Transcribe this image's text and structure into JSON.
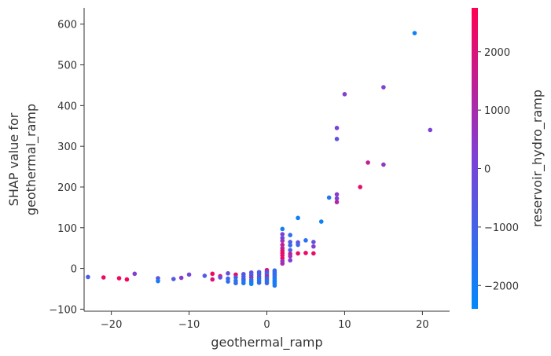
{
  "chart_data": {
    "type": "scatter",
    "xlabel": "geothermal_ramp",
    "ylabel_lines": [
      "SHAP value for",
      "geothermal_ramp"
    ],
    "colorbar_label": "reservoir_hydro_ramp",
    "xlim": [
      -23.5,
      23.5
    ],
    "ylim": [
      -105,
      640
    ],
    "xticks": [
      -20,
      -10,
      0,
      10,
      20
    ],
    "yticks": [
      -100,
      0,
      100,
      200,
      300,
      400,
      500,
      600
    ],
    "clim": [
      -2400,
      2750
    ],
    "cticks": [
      -2000,
      -1000,
      0,
      1000,
      2000
    ],
    "colormap": [
      "#008afb",
      "#7d41d6",
      "#ff0052"
    ],
    "points": [
      {
        "x": -23,
        "y": -21,
        "c": -900
      },
      {
        "x": -21,
        "y": -22,
        "c": 2400
      },
      {
        "x": -19,
        "y": -24,
        "c": 2500
      },
      {
        "x": -18,
        "y": -27,
        "c": 2600
      },
      {
        "x": -17,
        "y": -13,
        "c": 300
      },
      {
        "x": -14,
        "y": -24,
        "c": -500
      },
      {
        "x": -14,
        "y": -31,
        "c": -1900
      },
      {
        "x": -12,
        "y": -26,
        "c": -700
      },
      {
        "x": -11,
        "y": -23,
        "c": 400
      },
      {
        "x": -10,
        "y": -15,
        "c": 0
      },
      {
        "x": -8,
        "y": -18,
        "c": -800
      },
      {
        "x": -7,
        "y": -13,
        "c": 2500
      },
      {
        "x": -7,
        "y": -27,
        "c": 2100
      },
      {
        "x": -6,
        "y": -19,
        "c": 2400
      },
      {
        "x": -6,
        "y": -22,
        "c": -400
      },
      {
        "x": -5,
        "y": -12,
        "c": -200
      },
      {
        "x": -5,
        "y": -25,
        "c": -1100
      },
      {
        "x": -5,
        "y": -32,
        "c": -1500
      },
      {
        "x": -4,
        "y": -15,
        "c": 2300
      },
      {
        "x": -4,
        "y": -22,
        "c": -800
      },
      {
        "x": -4,
        "y": -30,
        "c": -1600
      },
      {
        "x": -4,
        "y": -36,
        "c": -1300
      },
      {
        "x": -3,
        "y": -14,
        "c": -300
      },
      {
        "x": -3,
        "y": -20,
        "c": -1000
      },
      {
        "x": -3,
        "y": -26,
        "c": -700
      },
      {
        "x": -3,
        "y": -31,
        "c": -1500
      },
      {
        "x": -3,
        "y": -36,
        "c": -1800
      },
      {
        "x": -2,
        "y": -10,
        "c": -400
      },
      {
        "x": -2,
        "y": -16,
        "c": -900
      },
      {
        "x": -2,
        "y": -22,
        "c": 500
      },
      {
        "x": -2,
        "y": -28,
        "c": -1200
      },
      {
        "x": -2,
        "y": -33,
        "c": -1600
      },
      {
        "x": -2,
        "y": -38,
        "c": -2000
      },
      {
        "x": -1,
        "y": -9,
        "c": -700
      },
      {
        "x": -1,
        "y": -14,
        "c": -1100
      },
      {
        "x": -1,
        "y": -20,
        "c": -300
      },
      {
        "x": -1,
        "y": -25,
        "c": -1500
      },
      {
        "x": -1,
        "y": -30,
        "c": -1800
      },
      {
        "x": -1,
        "y": -35,
        "c": -1300
      },
      {
        "x": 0,
        "y": -4,
        "c": 2200
      },
      {
        "x": 0,
        "y": -8,
        "c": 300
      },
      {
        "x": 0,
        "y": -12,
        "c": -900
      },
      {
        "x": 0,
        "y": -16,
        "c": -1400
      },
      {
        "x": 0,
        "y": -20,
        "c": 1800
      },
      {
        "x": 0,
        "y": -24,
        "c": -1700
      },
      {
        "x": 0,
        "y": -28,
        "c": -600
      },
      {
        "x": 0,
        "y": -32,
        "c": -2000
      },
      {
        "x": 0,
        "y": -36,
        "c": -1100
      },
      {
        "x": 1,
        "y": -5,
        "c": -1500
      },
      {
        "x": 1,
        "y": -9,
        "c": -1000
      },
      {
        "x": 1,
        "y": -13,
        "c": -1800
      },
      {
        "x": 1,
        "y": -17,
        "c": -700
      },
      {
        "x": 1,
        "y": -21,
        "c": -1900
      },
      {
        "x": 1,
        "y": -25,
        "c": -1300
      },
      {
        "x": 1,
        "y": -29,
        "c": -2100
      },
      {
        "x": 1,
        "y": -33,
        "c": -1600
      },
      {
        "x": 1,
        "y": -37,
        "c": -2200
      },
      {
        "x": 1,
        "y": -42,
        "c": -1700
      },
      {
        "x": 2,
        "y": 97,
        "c": -1900
      },
      {
        "x": 2,
        "y": 84,
        "c": 100
      },
      {
        "x": 2,
        "y": 75,
        "c": -300
      },
      {
        "x": 2,
        "y": 68,
        "c": 700
      },
      {
        "x": 2,
        "y": 58,
        "c": 1600
      },
      {
        "x": 2,
        "y": 50,
        "c": 1200
      },
      {
        "x": 2,
        "y": 44,
        "c": 2000
      },
      {
        "x": 2,
        "y": 38,
        "c": 2400
      },
      {
        "x": 2,
        "y": 32,
        "c": 2100
      },
      {
        "x": 2,
        "y": 25,
        "c": 2600
      },
      {
        "x": 2,
        "y": 18,
        "c": 400
      },
      {
        "x": 2,
        "y": 12,
        "c": 1000
      },
      {
        "x": 3,
        "y": 82,
        "c": -1500
      },
      {
        "x": 3,
        "y": 65,
        "c": -700
      },
      {
        "x": 3,
        "y": 57,
        "c": -1200
      },
      {
        "x": 3,
        "y": 45,
        "c": -900
      },
      {
        "x": 3,
        "y": 36,
        "c": 1400
      },
      {
        "x": 3,
        "y": 30,
        "c": 900
      },
      {
        "x": 3,
        "y": 20,
        "c": 300
      },
      {
        "x": 4,
        "y": 124,
        "c": -2000
      },
      {
        "x": 4,
        "y": 64,
        "c": -400
      },
      {
        "x": 4,
        "y": 58,
        "c": -1100
      },
      {
        "x": 4,
        "y": 37,
        "c": 2300
      },
      {
        "x": 5,
        "y": 69,
        "c": -1500
      },
      {
        "x": 5,
        "y": 38,
        "c": 2400
      },
      {
        "x": 6,
        "y": 65,
        "c": -300
      },
      {
        "x": 6,
        "y": 54,
        "c": 200
      },
      {
        "x": 6,
        "y": 37,
        "c": 2300
      },
      {
        "x": 7,
        "y": 115,
        "c": -2100
      },
      {
        "x": 8,
        "y": 174,
        "c": -1700
      },
      {
        "x": 9,
        "y": 345,
        "c": 200
      },
      {
        "x": 9,
        "y": 318,
        "c": -400
      },
      {
        "x": 9,
        "y": 182,
        "c": 400
      },
      {
        "x": 9,
        "y": 172,
        "c": 100
      },
      {
        "x": 9,
        "y": 163,
        "c": 1200
      },
      {
        "x": 10,
        "y": 428,
        "c": 300
      },
      {
        "x": 12,
        "y": 200,
        "c": 2300
      },
      {
        "x": 13,
        "y": 260,
        "c": 1500
      },
      {
        "x": 15,
        "y": 445,
        "c": 200
      },
      {
        "x": 15,
        "y": 255,
        "c": 500
      },
      {
        "x": 19,
        "y": 578,
        "c": -2100
      },
      {
        "x": 21,
        "y": 340,
        "c": 100
      }
    ]
  }
}
